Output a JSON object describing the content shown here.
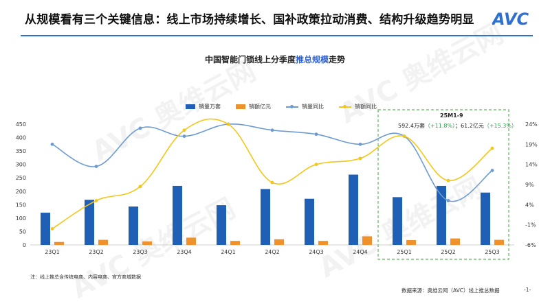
{
  "slide": {
    "title": "从规模看有三个关键信息：线上市场持续增长、国补政策拉动消费、结构升级趋势明显",
    "logo_text": "AVC"
  },
  "chart_title": {
    "prefix": "中国智能门锁线上分季度",
    "highlight": "推总规模",
    "suffix": "走势"
  },
  "legend": {
    "s1": "销量万套",
    "s2": "销额亿元",
    "s3": "销量同比",
    "s4": "销额同比"
  },
  "highlight_box": {
    "title": "25M1-9",
    "vol_value": "592.4万套",
    "vol_growth": "（+11.8%）",
    "sep": "；",
    "sales_value": "61.2亿元",
    "sales_growth": "（+15.3%）"
  },
  "footnote": "注：线上推总含传统电商、内容电商、官方商城数据",
  "source": "数据来源：奥维云网（AVC）线上推总数据",
  "page_number": "-1-",
  "watermark_text": "AVC 奥维云网",
  "colors": {
    "title_rule": "#2f6fd1",
    "volume_bar": "#1f5fb5",
    "sales_bar": "#f0922c",
    "volume_yoy_line": "#6b9bd2",
    "sales_yoy_line": "#f5c518",
    "highlight_box": "#5cb85c",
    "growth_text": "#2aa14a"
  },
  "chart_data": {
    "type": "bar",
    "categories": [
      "23Q1",
      "23Q2",
      "23Q3",
      "23Q4",
      "24Q1",
      "24Q2",
      "24Q3",
      "24Q4",
      "25Q1",
      "25Q2",
      "25Q3"
    ],
    "series": [
      {
        "name": "销量万套",
        "type": "bar",
        "axis": "left",
        "values": [
          120,
          168,
          143,
          220,
          148,
          208,
          172,
          262,
          178,
          220,
          195
        ]
      },
      {
        "name": "销额亿元",
        "type": "bar",
        "axis": "left",
        "values": [
          11,
          19,
          13,
          27,
          15,
          21,
          15,
          32,
          18,
          24,
          19
        ]
      },
      {
        "name": "销量同比",
        "type": "line",
        "axis": "right",
        "values": [
          19.0,
          13.5,
          23.0,
          21.0,
          24.0,
          22.5,
          21.5,
          19.0,
          21.0,
          5.0,
          12.5
        ]
      },
      {
        "name": "销额同比",
        "type": "line",
        "axis": "right",
        "values": [
          -2.0,
          5.0,
          8.5,
          22.5,
          24.0,
          9.5,
          14.0,
          15.5,
          21.0,
          10.0,
          18.0
        ]
      }
    ],
    "y_left": {
      "ticks": [
        0,
        50,
        100,
        150,
        200,
        250,
        300,
        350,
        400,
        450
      ],
      "range": [
        0,
        450
      ]
    },
    "y_right": {
      "ticks": [
        -6,
        -1,
        4,
        9,
        14,
        19,
        24
      ],
      "tick_labels": [
        "-6%",
        "-1%",
        "4%",
        "9%",
        "14%",
        "19%",
        "24%"
      ],
      "range": [
        -6,
        24
      ]
    },
    "highlight_categories": [
      "25Q1",
      "25Q2",
      "25Q3"
    ],
    "grid": false,
    "legend_position": "top"
  }
}
